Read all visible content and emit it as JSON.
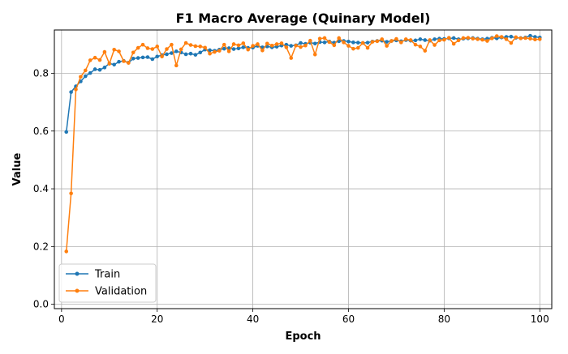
{
  "chart_data": {
    "type": "line",
    "title": "F1 Macro Average (Quinary Model)",
    "xlabel": "Epoch",
    "ylabel": "Value",
    "xlim": [
      -1.5,
      102.5
    ],
    "ylim": [
      -0.015,
      0.95
    ],
    "xticks": [
      0,
      20,
      40,
      60,
      80,
      100
    ],
    "yticks": [
      0.0,
      0.2,
      0.4,
      0.6,
      0.8
    ],
    "grid": true,
    "legend_position": "lower-left",
    "x": [
      1,
      2,
      3,
      4,
      5,
      6,
      7,
      8,
      9,
      10,
      11,
      12,
      13,
      14,
      15,
      16,
      17,
      18,
      19,
      20,
      21,
      22,
      23,
      24,
      25,
      26,
      27,
      28,
      29,
      30,
      31,
      32,
      33,
      34,
      35,
      36,
      37,
      38,
      39,
      40,
      41,
      42,
      43,
      44,
      45,
      46,
      47,
      48,
      49,
      50,
      51,
      52,
      53,
      54,
      55,
      56,
      57,
      58,
      59,
      60,
      61,
      62,
      63,
      64,
      65,
      66,
      67,
      68,
      69,
      70,
      71,
      72,
      73,
      74,
      75,
      76,
      77,
      78,
      79,
      80,
      81,
      82,
      83,
      84,
      85,
      86,
      87,
      88,
      89,
      90,
      91,
      92,
      93,
      94,
      95,
      96,
      97,
      98,
      99,
      100
    ],
    "series": [
      {
        "name": "Train",
        "color": "#1f77b4",
        "values": [
          0.597,
          0.735,
          0.755,
          0.772,
          0.79,
          0.801,
          0.814,
          0.812,
          0.82,
          0.834,
          0.83,
          0.84,
          0.843,
          0.837,
          0.851,
          0.853,
          0.855,
          0.856,
          0.849,
          0.858,
          0.863,
          0.866,
          0.87,
          0.876,
          0.872,
          0.866,
          0.868,
          0.864,
          0.872,
          0.882,
          0.88,
          0.878,
          0.882,
          0.885,
          0.887,
          0.884,
          0.886,
          0.89,
          0.888,
          0.889,
          0.895,
          0.89,
          0.893,
          0.89,
          0.892,
          0.896,
          0.899,
          0.895,
          0.897,
          0.905,
          0.902,
          0.906,
          0.903,
          0.908,
          0.907,
          0.91,
          0.906,
          0.911,
          0.912,
          0.91,
          0.907,
          0.906,
          0.905,
          0.906,
          0.91,
          0.912,
          0.913,
          0.909,
          0.912,
          0.914,
          0.911,
          0.915,
          0.913,
          0.914,
          0.918,
          0.915,
          0.913,
          0.918,
          0.92,
          0.919,
          0.921,
          0.922,
          0.918,
          0.92,
          0.921,
          0.922,
          0.92,
          0.918,
          0.92,
          0.923,
          0.921,
          0.924,
          0.926,
          0.927,
          0.923,
          0.922,
          0.924,
          0.93,
          0.926,
          0.924
        ]
      },
      {
        "name": "Validation",
        "color": "#ff7f0e",
        "values": [
          0.183,
          0.384,
          0.744,
          0.788,
          0.81,
          0.845,
          0.854,
          0.846,
          0.874,
          0.833,
          0.882,
          0.876,
          0.842,
          0.836,
          0.872,
          0.888,
          0.899,
          0.887,
          0.884,
          0.893,
          0.858,
          0.884,
          0.899,
          0.827,
          0.883,
          0.905,
          0.898,
          0.894,
          0.893,
          0.889,
          0.868,
          0.874,
          0.878,
          0.899,
          0.876,
          0.901,
          0.897,
          0.904,
          0.882,
          0.895,
          0.901,
          0.879,
          0.903,
          0.896,
          0.901,
          0.904,
          0.89,
          0.853,
          0.896,
          0.891,
          0.896,
          0.913,
          0.865,
          0.92,
          0.922,
          0.908,
          0.897,
          0.922,
          0.907,
          0.895,
          0.885,
          0.888,
          0.905,
          0.888,
          0.909,
          0.911,
          0.918,
          0.895,
          0.912,
          0.919,
          0.907,
          0.918,
          0.915,
          0.899,
          0.893,
          0.878,
          0.915,
          0.898,
          0.914,
          0.916,
          0.923,
          0.902,
          0.914,
          0.922,
          0.923,
          0.92,
          0.918,
          0.916,
          0.912,
          0.921,
          0.929,
          0.926,
          0.918,
          0.905,
          0.925,
          0.921,
          0.922,
          0.92,
          0.917,
          0.918
        ]
      }
    ]
  }
}
